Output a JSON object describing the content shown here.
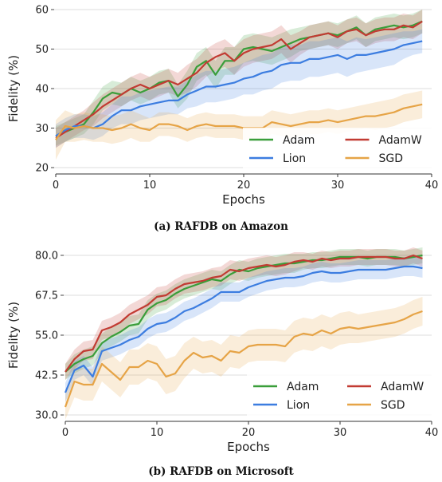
{
  "chart_data": [
    {
      "type": "line",
      "caption": "(a) RAFDB on Amazon",
      "xlabel": "Epochs",
      "ylabel": "Fidelity (%)",
      "xlim": [
        0,
        40
      ],
      "ylim": [
        20,
        60
      ],
      "xticks": [
        0,
        10,
        20,
        30,
        40
      ],
      "yticks": [
        20,
        30,
        40,
        50,
        60
      ],
      "ytick_labels": [
        "20",
        "30",
        "40",
        "50",
        "60"
      ],
      "grid": "horizontal",
      "legend_position": "bottom-right",
      "series": [
        {
          "name": "Adam",
          "color": "#3a9e3a",
          "values": [
            28,
            29,
            30,
            31,
            34,
            37.5,
            39,
            38.5,
            40,
            39,
            40,
            41.5,
            42,
            38,
            41,
            45.5,
            47,
            43.5,
            47,
            47,
            50,
            50.5,
            50,
            49.5,
            50.5,
            51.5,
            52.5,
            53,
            53.5,
            54,
            53.5,
            54.5,
            55.5,
            53.5,
            55,
            55.5,
            56,
            55.5,
            56,
            57
          ],
          "band": [
            2.5,
            2.5,
            2.5,
            2.5,
            3,
            3,
            3,
            3,
            3,
            3,
            3,
            3,
            3,
            3,
            3.5,
            3.5,
            3.5,
            3.5,
            3.5,
            3.5,
            3.5,
            3.5,
            3.5,
            3.5,
            3.5,
            3.5,
            3,
            3,
            3,
            3,
            3,
            3,
            3,
            3,
            3,
            3,
            3,
            3,
            3,
            3
          ]
        },
        {
          "name": "AdamW",
          "color": "#c23b33",
          "values": [
            27.5,
            29,
            30.5,
            32,
            33.5,
            35.5,
            37,
            38.5,
            40,
            41,
            40,
            41,
            42,
            41,
            42.5,
            44,
            46.5,
            48,
            49,
            47,
            49,
            50,
            50.5,
            51,
            52.5,
            50,
            51.5,
            53,
            53.5,
            54,
            53,
            54.5,
            55,
            53.5,
            54.5,
            55,
            55,
            56,
            55.5,
            57
          ],
          "band": [
            2.5,
            2.5,
            2.5,
            2.5,
            3,
            3,
            3,
            3,
            3,
            3,
            3,
            3,
            3,
            3,
            3.5,
            3.5,
            3.5,
            3.5,
            3.5,
            3.5,
            3.5,
            3.5,
            3.5,
            3.5,
            3.5,
            3.5,
            3,
            3,
            3,
            3,
            3,
            3,
            3,
            3,
            3,
            3,
            3,
            3,
            3,
            3
          ]
        },
        {
          "name": "Lion",
          "color": "#3c7de0",
          "values": [
            28,
            29.5,
            30.5,
            30.5,
            30,
            31,
            33,
            34.5,
            34.5,
            35.5,
            36,
            36.5,
            37,
            37,
            38.5,
            39.5,
            40.5,
            40.5,
            41,
            41.5,
            42.5,
            43,
            44,
            44.5,
            46,
            46.5,
            46.5,
            47.5,
            47.5,
            48,
            48.5,
            47.5,
            48.5,
            48.5,
            49,
            49.5,
            50,
            51,
            51.5,
            52
          ],
          "band": [
            3,
            3,
            3,
            3,
            3,
            3,
            3,
            3.5,
            3.5,
            3.5,
            3.5,
            3.5,
            3.5,
            3.5,
            3.5,
            4,
            4,
            4,
            4,
            4,
            4,
            4.5,
            4.5,
            4.5,
            4.5,
            4.5,
            4.5,
            4.5,
            4.5,
            4.5,
            4.5,
            4.5,
            4.5,
            4,
            4,
            4,
            4,
            3.5,
            3,
            3
          ]
        },
        {
          "name": "SGD",
          "color": "#e6a447",
          "values": [
            27,
            30.5,
            30,
            30.5,
            30,
            30,
            29.5,
            30,
            31,
            30,
            29.5,
            31,
            31,
            30.5,
            29.5,
            30.5,
            31,
            30.5,
            30.5,
            30.5,
            30,
            30,
            30,
            31.5,
            31,
            30.5,
            31,
            31.5,
            31.5,
            32,
            31.5,
            32,
            32.5,
            33,
            33,
            33.5,
            34,
            35,
            35.5,
            36
          ],
          "band": [
            5,
            4,
            3.5,
            3.5,
            3.5,
            3.5,
            3.5,
            3.5,
            3.5,
            3.5,
            3,
            3,
            3,
            3,
            3,
            3,
            3,
            3,
            3,
            3,
            3,
            3,
            3,
            3,
            3,
            3,
            3,
            3,
            3,
            3,
            3,
            3,
            3,
            3,
            3.5,
            3.5,
            3.5,
            3.5,
            3.5,
            3.5
          ]
        }
      ]
    },
    {
      "type": "line",
      "caption": "(b) RAFDB on Microsoft",
      "xlabel": "Epochs",
      "ylabel": "Fidelity (%)",
      "xlim": [
        0,
        40
      ],
      "ylim": [
        30,
        80
      ],
      "xticks": [
        0,
        10,
        20,
        30,
        40
      ],
      "yticks": [
        30,
        42.5,
        55,
        67.5,
        80
      ],
      "ytick_labels": [
        "30.0",
        "42.5",
        "55.0",
        "67.5",
        "80.0"
      ],
      "grid": "horizontal",
      "legend_position": "bottom-right",
      "series": [
        {
          "name": "Adam",
          "color": "#3a9e3a",
          "values": [
            43.5,
            46,
            47.5,
            48.5,
            52.5,
            54.5,
            56,
            58,
            58.5,
            63,
            65,
            66,
            68,
            69.5,
            70.5,
            71.5,
            72.5,
            72,
            74,
            75.5,
            75,
            76,
            76.5,
            77,
            77.5,
            77.5,
            78,
            78.5,
            78.5,
            79,
            79.5,
            79.5,
            79.5,
            79,
            79.5,
            79.5,
            79.5,
            79,
            79.5,
            80
          ],
          "band": [
            2.5,
            3,
            3,
            3,
            3,
            3,
            3,
            3,
            3,
            3,
            3,
            3,
            3,
            3,
            3,
            3,
            3,
            3,
            3,
            3,
            3,
            3,
            3,
            3,
            3,
            3,
            2.5,
            2.5,
            2.5,
            2.5,
            2.5,
            2.5,
            2.5,
            2.5,
            2.5,
            2.5,
            2.5,
            2.5,
            2.5,
            2.5
          ]
        },
        {
          "name": "AdamW",
          "color": "#c23b33",
          "values": [
            43.5,
            47.5,
            50,
            50.5,
            56.5,
            57.5,
            59,
            61.5,
            63,
            64.5,
            67,
            67.5,
            69.5,
            71,
            71.5,
            72,
            73,
            73.5,
            75.5,
            75,
            76,
            76.5,
            77,
            76.5,
            77,
            78,
            78.5,
            78,
            79,
            78.5,
            79,
            79,
            79.5,
            79.5,
            79.5,
            79.5,
            79,
            79,
            80,
            79
          ],
          "band": [
            2.5,
            3,
            3,
            3,
            3,
            3,
            3,
            3,
            3,
            3,
            3,
            3,
            3,
            3,
            3,
            3,
            3,
            3,
            3,
            3,
            3,
            3,
            3,
            3,
            3,
            3,
            2.5,
            2.5,
            2.5,
            2.5,
            2.5,
            2.5,
            2.5,
            2.5,
            2.5,
            2.5,
            2.5,
            2.5,
            2.5,
            2.5
          ]
        },
        {
          "name": "Lion",
          "color": "#3c7de0",
          "values": [
            37,
            44,
            45.5,
            42,
            50,
            51,
            52,
            53.5,
            54.5,
            57,
            58.5,
            59,
            60.5,
            62.5,
            63.5,
            65,
            66.5,
            68.5,
            68.5,
            68.5,
            70,
            71,
            72,
            72.5,
            73,
            73,
            73.5,
            74.5,
            75,
            74.5,
            74.5,
            75,
            75.5,
            75.5,
            75.5,
            75.5,
            76,
            76.5,
            76.5,
            76
          ],
          "band": [
            3,
            3,
            3,
            3,
            3,
            3,
            3,
            3,
            3,
            3,
            3,
            3,
            3,
            3,
            3,
            3,
            3,
            3,
            3,
            3,
            3,
            3,
            3,
            3,
            3,
            3,
            3,
            3,
            3,
            3,
            3,
            3,
            3,
            3,
            3,
            3,
            3,
            3,
            3,
            3
          ]
        },
        {
          "name": "SGD",
          "color": "#e6a447",
          "values": [
            32.5,
            40.5,
            39.5,
            39.5,
            46,
            43.5,
            41,
            45,
            45,
            47,
            46,
            42,
            43,
            47,
            49.5,
            48,
            48.5,
            47,
            50,
            49.5,
            51.5,
            52,
            52,
            52,
            51.5,
            54.5,
            55.5,
            55,
            56.5,
            55.5,
            57,
            57.5,
            57,
            57.5,
            58,
            58.5,
            59,
            60,
            61.5,
            62.5
          ],
          "band": [
            4,
            5,
            5,
            5,
            5.5,
            5.5,
            5.5,
            5.5,
            5.5,
            5.5,
            5.5,
            5.5,
            5.5,
            5.5,
            5,
            5,
            5,
            5,
            5,
            5,
            5,
            5,
            5,
            5,
            5,
            5,
            5,
            5,
            5,
            5,
            5,
            5,
            4.5,
            4.5,
            4.5,
            4.5,
            4.5,
            4.5,
            4.5,
            4.5
          ]
        }
      ]
    }
  ]
}
